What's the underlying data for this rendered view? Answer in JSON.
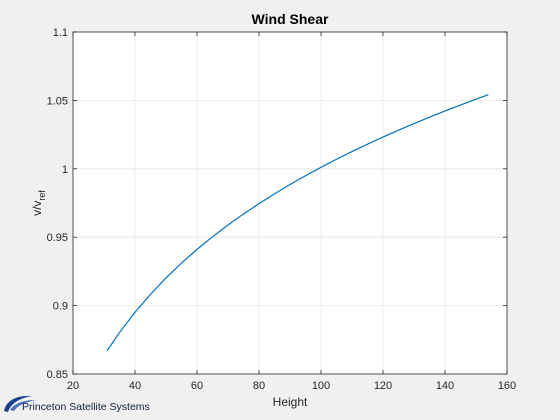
{
  "chart_data": {
    "type": "line",
    "title": "Wind Shear",
    "xlabel": "Height",
    "ylabel_main": "v/v",
    "ylabel_sub": "ref",
    "xlim": [
      20,
      160
    ],
    "ylim": [
      0.85,
      1.1
    ],
    "xticks": [
      20,
      40,
      60,
      80,
      100,
      120,
      140,
      160
    ],
    "yticks": [
      0.85,
      0.9,
      0.95,
      1,
      1.05,
      1.1
    ],
    "xtick_labels": [
      "20",
      "40",
      "60",
      "80",
      "100",
      "120",
      "140",
      "160"
    ],
    "ytick_labels": [
      "0.85",
      "0.9",
      "0.95",
      "1",
      "1.05",
      "1.1"
    ],
    "grid": true,
    "series": [
      {
        "color": "#0072bd",
        "x": [
          31,
          35,
          40,
          45,
          50,
          55,
          60,
          65,
          70,
          75,
          80,
          85,
          90,
          95,
          100,
          105,
          110,
          115,
          120,
          125,
          130,
          135,
          140,
          145,
          150,
          154
        ],
        "y": [
          0.867,
          0.8803,
          0.8951,
          0.9083,
          0.9202,
          0.9311,
          0.9411,
          0.9503,
          0.9589,
          0.967,
          0.9745,
          0.9817,
          0.9885,
          0.9949,
          1.0011,
          1.007,
          1.0126,
          1.018,
          1.0232,
          1.0282,
          1.0331,
          1.0377,
          1.0423,
          1.0466,
          1.0509,
          1.0542
        ]
      }
    ]
  },
  "footer": {
    "company": "Princeton Satellite Systems"
  },
  "colors": {
    "background": "#f0f0f0",
    "axes_background": "#ffffff",
    "grid": "#e6e6e6",
    "line": "#0072bd",
    "logo": "#1c3f8a"
  }
}
